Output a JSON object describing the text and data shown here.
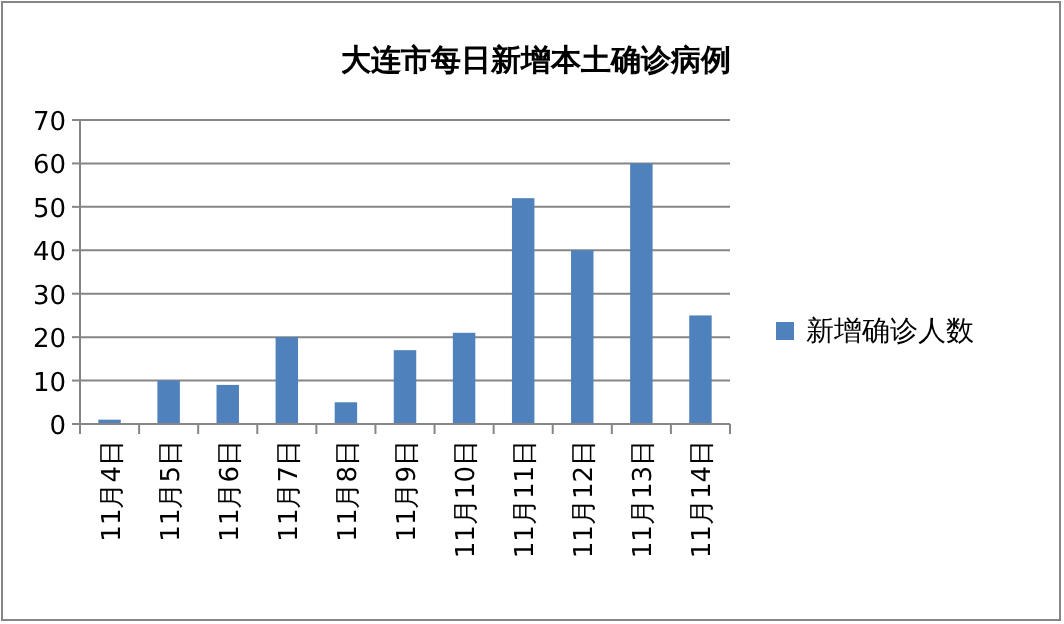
{
  "chart_data": {
    "type": "bar",
    "title": "大连市每日新增本土确诊病例",
    "categories": [
      "11月4日",
      "11月5日",
      "11月6日",
      "11月7日",
      "11月8日",
      "11月9日",
      "11月10日",
      "11月11日",
      "11月12日",
      "11月13日",
      "11月14日"
    ],
    "series": [
      {
        "name": "新增确诊人数",
        "color": "#4f81bd",
        "values": [
          1,
          10,
          9,
          20,
          5,
          17,
          21,
          52,
          40,
          60,
          25
        ]
      }
    ],
    "ylim": [
      0,
      70
    ],
    "yticks": [
      0,
      10,
      20,
      30,
      40,
      50,
      60,
      70
    ],
    "grid": "y",
    "legend": "right"
  }
}
